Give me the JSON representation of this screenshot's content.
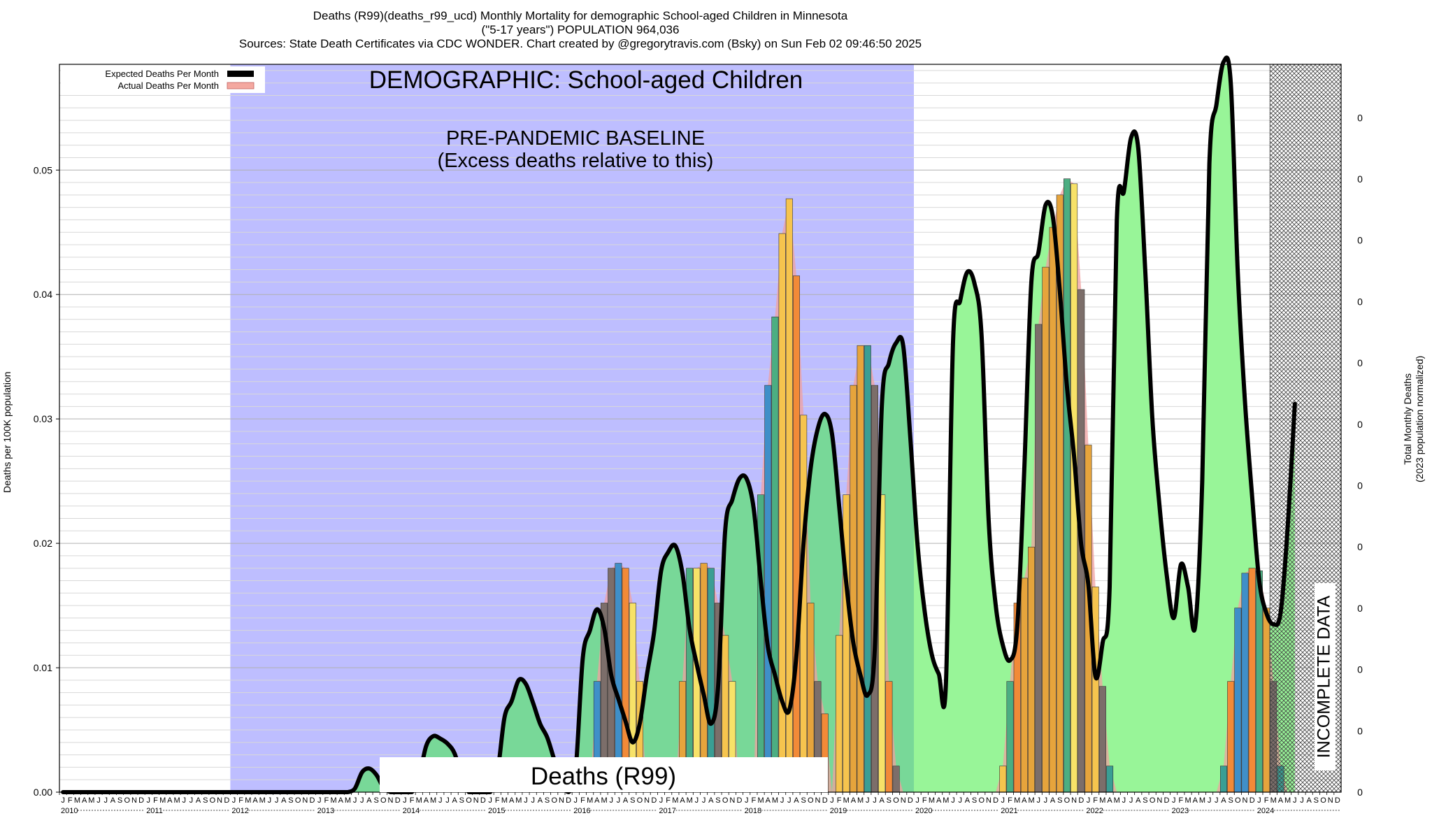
{
  "header": {
    "line1": "Deaths (R99)(deaths_r99_ucd) Monthly Mortality for demographic School-aged Children in Minnesota",
    "line2": "(\"5-17 years\") POPULATION 964,036",
    "line3": "Sources: State Death Certificates via CDC WONDER.              Chart created by @gregorytravis.com (Bsky) on Sun Feb 02 09:46:50 2025"
  },
  "chart_data": {
    "type": "bar",
    "demographic_label": "DEMOGRAPHIC: School-aged Children",
    "baseline_label_line1": "PRE-PANDEMIC BASELINE",
    "baseline_label_line2": "(Excess deaths relative to this)",
    "cause_label": "Deaths (R99)",
    "incomplete_label": "INCOMPLETE DATA",
    "ylabel_left": "Deaths per 100K population",
    "ylabel_right_line1": "Total Monthly Deaths",
    "ylabel_right_line2": "(2023 population normalized)",
    "ylim": [
      0,
      0.0585
    ],
    "y_ticks": [
      0.0,
      0.01,
      0.02,
      0.03,
      0.04,
      0.05
    ],
    "y_tick_labels": [
      "0.00",
      "0.01",
      "0.02",
      "0.03",
      "0.04",
      "0.05"
    ],
    "right_tick_labels": [
      "0",
      "0",
      "0",
      "0",
      "0",
      "0",
      "0",
      "0",
      "0",
      "0",
      "0",
      "0"
    ],
    "years": [
      "2010",
      "2011",
      "2012",
      "2013",
      "2014",
      "2015",
      "2016",
      "2017",
      "2018",
      "2019",
      "2020",
      "2021",
      "2022",
      "2023",
      "2024"
    ],
    "month_letters": [
      "J",
      "F",
      "M",
      "A",
      "M",
      "J",
      "J",
      "A",
      "S",
      "O",
      "N",
      "D"
    ],
    "baseline_period": [
      "2012-01",
      "2019-12"
    ],
    "incomplete_period": [
      "2024-03",
      "2024-12"
    ],
    "legend": [
      {
        "label": "Expected Deaths Per Month",
        "color": "#000000"
      },
      {
        "label": "Actual Deaths Per Month",
        "color": "#f4a8a0"
      }
    ],
    "colors": {
      "baseline_fill": "#bebeff",
      "excess_fill": "#98f598",
      "expected_line": "#000000",
      "actual_area": "#f0a0a0",
      "bar_palette": [
        "#3f8fc8",
        "#3a9e94",
        "#4cae82",
        "#7c6e6a",
        "#e6a43c",
        "#f28a38",
        "#f6c44e",
        "#f7e268"
      ]
    },
    "actual_series": {
      "name": "Actual Deaths Per Month",
      "note_units": "deaths per 100K population",
      "start_year": 2010,
      "values": [
        0,
        0,
        0,
        0,
        0,
        0,
        0,
        0,
        0,
        0,
        0,
        0,
        0,
        0,
        0,
        0,
        0,
        0,
        0,
        0,
        0,
        0,
        0,
        0,
        0,
        0,
        0,
        0,
        0,
        0,
        0,
        0,
        0,
        0,
        0,
        0,
        0,
        0,
        0,
        0,
        0,
        0,
        0,
        0,
        0,
        0,
        0,
        0,
        0,
        0,
        0,
        0,
        0,
        0,
        0,
        0,
        0,
        0,
        0,
        0,
        0,
        0,
        0,
        0,
        0,
        0,
        0,
        0,
        0,
        0,
        0,
        0,
        0,
        0,
        0,
        0.0089,
        0.0152,
        0.018,
        0.0184,
        0.018,
        0.0152,
        0.0089,
        0,
        0,
        0,
        0,
        0,
        0.0089,
        0.018,
        0.018,
        0.0184,
        0.018,
        0.0152,
        0.0126,
        0.0089,
        0,
        0,
        0,
        0.0239,
        0.0327,
        0.0382,
        0.0449,
        0.0477,
        0.0415,
        0.0303,
        0.0152,
        0.0089,
        0.0063,
        0,
        0.0126,
        0.0239,
        0.0327,
        0.0359,
        0.0359,
        0.0327,
        0.0239,
        0.0089,
        0.0021,
        0,
        0,
        0,
        0,
        0,
        0,
        0,
        0,
        0,
        0,
        0,
        0,
        0,
        0,
        0.0021,
        0.0089,
        0.0152,
        0.0172,
        0.0197,
        0.0376,
        0.0422,
        0.0454,
        0.048,
        0.0493,
        0.0489,
        0.0404,
        0.0279,
        0.0165,
        0.0085,
        0.0021,
        0,
        0,
        0,
        0,
        0,
        0,
        0,
        0,
        0,
        0,
        0,
        0,
        0,
        0,
        0,
        0.0021,
        0.0089,
        0.0148,
        0.0176,
        0.018,
        0.0178,
        0.0148,
        0.0089,
        0.0021,
        0,
        0,
        0,
        0,
        0,
        0,
        0,
        0
      ]
    },
    "expected_series": {
      "name": "Expected Deaths Per Month",
      "start_year": 2010,
      "values": [
        0,
        0,
        0,
        0,
        0,
        0,
        0,
        0,
        0,
        0,
        0,
        0,
        0,
        0,
        0,
        0,
        0,
        0,
        0,
        0,
        0,
        0,
        0,
        0,
        0,
        0,
        0,
        0,
        0,
        0,
        0,
        0,
        0,
        0,
        0,
        0,
        0,
        0,
        0,
        0,
        0,
        0.0003,
        0.0016,
        0.0019,
        0.0014,
        0.0004,
        0,
        0,
        0,
        0,
        0.0012,
        0.0037,
        0.0045,
        0.0043,
        0.0039,
        0.0031,
        0.0012,
        0,
        0,
        0,
        0,
        0.0015,
        0.006,
        0.0073,
        0.009,
        0.0087,
        0.0072,
        0.0055,
        0.0044,
        0.0026,
        0.0008,
        0,
        0.0018,
        0.0108,
        0.013,
        0.0147,
        0.0132,
        0.0094,
        0.0075,
        0.0057,
        0.004,
        0.0055,
        0.0094,
        0.0128,
        0.0178,
        0.0193,
        0.0198,
        0.0176,
        0.0131,
        0.0103,
        0.0078,
        0.0055,
        0.0085,
        0.021,
        0.0235,
        0.0252,
        0.0252,
        0.0228,
        0.0169,
        0.0117,
        0.0094,
        0.0073,
        0.0066,
        0.011,
        0.02,
        0.026,
        0.0292,
        0.0304,
        0.0288,
        0.023,
        0.0168,
        0.012,
        0.0094,
        0.0078,
        0.0114,
        0.0311,
        0.0345,
        0.0361,
        0.0359,
        0.0285,
        0.02,
        0.0146,
        0.0111,
        0.0095,
        0.0087,
        0.0362,
        0.0395,
        0.0418,
        0.0409,
        0.0368,
        0.0219,
        0.015,
        0.0118,
        0.0106,
        0.0132,
        0.0258,
        0.041,
        0.0434,
        0.0472,
        0.0463,
        0.0402,
        0.0326,
        0.027,
        0.0199,
        0.0167,
        0.0093,
        0.012,
        0.0165,
        0.0459,
        0.0483,
        0.0526,
        0.0518,
        0.0418,
        0.03,
        0.023,
        0.0175,
        0.014,
        0.0183,
        0.0165,
        0.0133,
        0.025,
        0.0505,
        0.0553,
        0.0587,
        0.057,
        0.0417,
        0.0314,
        0.0238,
        0.017,
        0.0144,
        0.0135,
        0.0144,
        0.0213,
        0.0312
      ]
    }
  }
}
